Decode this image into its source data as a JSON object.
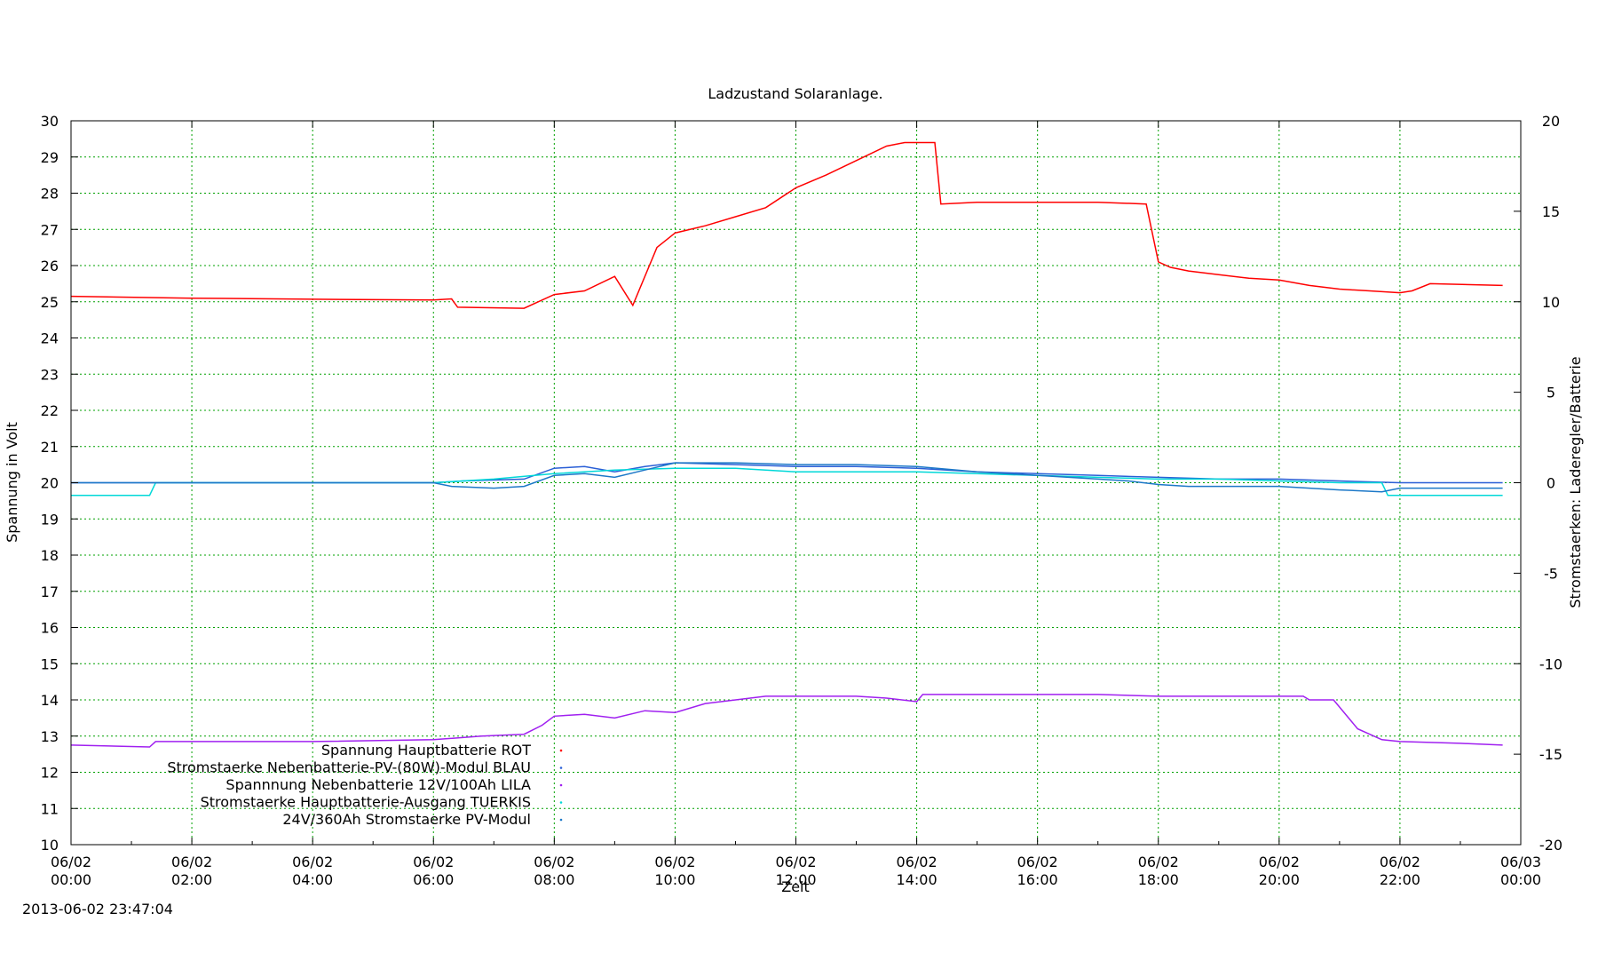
{
  "chart_data": {
    "type": "line",
    "title": "Ladzustand Solaranlage.",
    "xlabel": "Zeit",
    "ylabel_left": "Spannung in Volt",
    "ylabel_right": "Stromstaerken: Laderegler/Batterie",
    "timestamp": "2013-06-02 23:47:04",
    "x_unit": "hours since 06/02 00:00",
    "xlim": [
      0,
      24
    ],
    "ylim_left": [
      10,
      30
    ],
    "ylim_right": [
      -20,
      20
    ],
    "grid": true,
    "legend_position": "bottom-left",
    "x_ticks": [
      {
        "x": 0,
        "date": "06/02",
        "time": "00:00"
      },
      {
        "x": 2,
        "date": "06/02",
        "time": "02:00"
      },
      {
        "x": 4,
        "date": "06/02",
        "time": "04:00"
      },
      {
        "x": 6,
        "date": "06/02",
        "time": "06:00"
      },
      {
        "x": 8,
        "date": "06/02",
        "time": "08:00"
      },
      {
        "x": 10,
        "date": "06/02",
        "time": "10:00"
      },
      {
        "x": 12,
        "date": "06/02",
        "time": "12:00"
      },
      {
        "x": 14,
        "date": "06/02",
        "time": "14:00"
      },
      {
        "x": 16,
        "date": "06/02",
        "time": "16:00"
      },
      {
        "x": 18,
        "date": "06/02",
        "time": "18:00"
      },
      {
        "x": 20,
        "date": "06/02",
        "time": "20:00"
      },
      {
        "x": 22,
        "date": "06/02",
        "time": "22:00"
      },
      {
        "x": 24,
        "date": "06/03",
        "time": "00:00"
      }
    ],
    "y_ticks_left": [
      "10",
      "11",
      "12",
      "13",
      "14",
      "15",
      "16",
      "17",
      "18",
      "19",
      "20",
      "21",
      "22",
      "23",
      "24",
      "25",
      "26",
      "27",
      "28",
      "29",
      "30"
    ],
    "y_ticks_right": [
      "-20",
      "-15",
      "-10",
      "-5",
      "0",
      "5",
      "10",
      "15",
      "20"
    ],
    "series": [
      {
        "name": "Spannung Hauptbatterie ROT",
        "axis": "left",
        "color": "#ff0000",
        "x": [
          0,
          2,
          4,
          6,
          6.3,
          6.4,
          7.5,
          8,
          8.5,
          9,
          9.3,
          9.7,
          10,
          10.5,
          11,
          11.5,
          12,
          12.5,
          13,
          13.5,
          13.8,
          14.3,
          14.4,
          15,
          16,
          17,
          17.8,
          18,
          18.2,
          18.5,
          19,
          19.5,
          20,
          20.5,
          21,
          21.5,
          22,
          22.2,
          22.5,
          23.7
        ],
        "y": [
          25.15,
          25.1,
          25.07,
          25.05,
          25.08,
          24.85,
          24.82,
          25.2,
          25.3,
          25.7,
          24.9,
          26.5,
          26.9,
          27.1,
          27.35,
          27.6,
          28.15,
          28.5,
          28.9,
          29.3,
          29.4,
          29.4,
          27.7,
          27.75,
          27.75,
          27.75,
          27.7,
          26.1,
          25.95,
          25.85,
          25.75,
          25.65,
          25.6,
          25.45,
          25.35,
          25.3,
          25.25,
          25.3,
          25.5,
          25.45
        ]
      },
      {
        "name": "Stromstaerke Nebenbatterie-PV-(80W)-Modul BLAU",
        "axis": "right",
        "color": "#2a5fd6",
        "x": [
          0,
          6,
          6.5,
          7.5,
          8,
          8.5,
          9,
          9.5,
          10,
          11,
          12,
          13,
          14,
          15,
          16,
          17,
          18,
          19,
          20,
          21,
          22,
          23.7
        ],
        "y": [
          0,
          0,
          0.1,
          0.2,
          0.8,
          0.9,
          0.6,
          0.9,
          1.1,
          1.0,
          0.9,
          0.9,
          0.8,
          0.6,
          0.5,
          0.4,
          0.3,
          0.2,
          0.2,
          0.1,
          0,
          0
        ]
      },
      {
        "name": "Spannnung Nebenbatterie 12V/100Ah LILA",
        "axis": "left",
        "color": "#a020f0",
        "x": [
          0,
          1.3,
          1.4,
          4,
          6,
          6.8,
          7.5,
          7.8,
          8,
          8.5,
          9,
          9.5,
          10,
          10.5,
          11,
          11.5,
          12,
          13,
          13.5,
          14,
          14.1,
          15,
          16,
          17,
          18,
          19,
          20,
          20.4,
          20.5,
          20.9,
          21.3,
          21.7,
          22,
          23,
          23.7
        ],
        "y": [
          12.75,
          12.7,
          12.85,
          12.85,
          12.9,
          13.0,
          13.05,
          13.3,
          13.55,
          13.6,
          13.5,
          13.7,
          13.65,
          13.9,
          14.0,
          14.1,
          14.1,
          14.1,
          14.05,
          13.95,
          14.15,
          14.15,
          14.15,
          14.15,
          14.1,
          14.1,
          14.1,
          14.1,
          14.0,
          14.0,
          13.2,
          12.9,
          12.85,
          12.8,
          12.75
        ]
      },
      {
        "name": "Stromstaerke Hauptbatterie-Ausgang TUERKIS",
        "axis": "right",
        "color": "#00d8d8",
        "x": [
          0,
          1.3,
          1.4,
          6,
          7,
          8,
          9,
          10,
          11,
          12,
          13,
          14,
          15,
          16,
          17,
          18,
          19,
          20,
          21,
          21.7,
          21.8,
          23.7
        ],
        "y": [
          -0.7,
          -0.7,
          0,
          0,
          0.2,
          0.5,
          0.7,
          0.8,
          0.8,
          0.6,
          0.6,
          0.6,
          0.5,
          0.4,
          0.3,
          0.2,
          0.2,
          0.1,
          0,
          0,
          -0.7,
          -0.7
        ]
      },
      {
        "name": "24V/360Ah Stromstaerke PV-Modul",
        "axis": "right",
        "color": "#1c78c8",
        "x": [
          0,
          6,
          6.3,
          7,
          7.5,
          8,
          8.5,
          9,
          9.5,
          10,
          11,
          12,
          13,
          14,
          15,
          16,
          17,
          17.5,
          18,
          18.5,
          19,
          20,
          20.5,
          21,
          21.7,
          22,
          23.7
        ],
        "y": [
          0,
          0,
          -0.2,
          -0.3,
          -0.2,
          0.4,
          0.5,
          0.3,
          0.7,
          1.1,
          1.1,
          1.0,
          1.0,
          0.9,
          0.6,
          0.4,
          0.2,
          0.1,
          -0.1,
          -0.2,
          -0.2,
          -0.2,
          -0.3,
          -0.4,
          -0.5,
          -0.3,
          -0.3
        ]
      }
    ]
  }
}
